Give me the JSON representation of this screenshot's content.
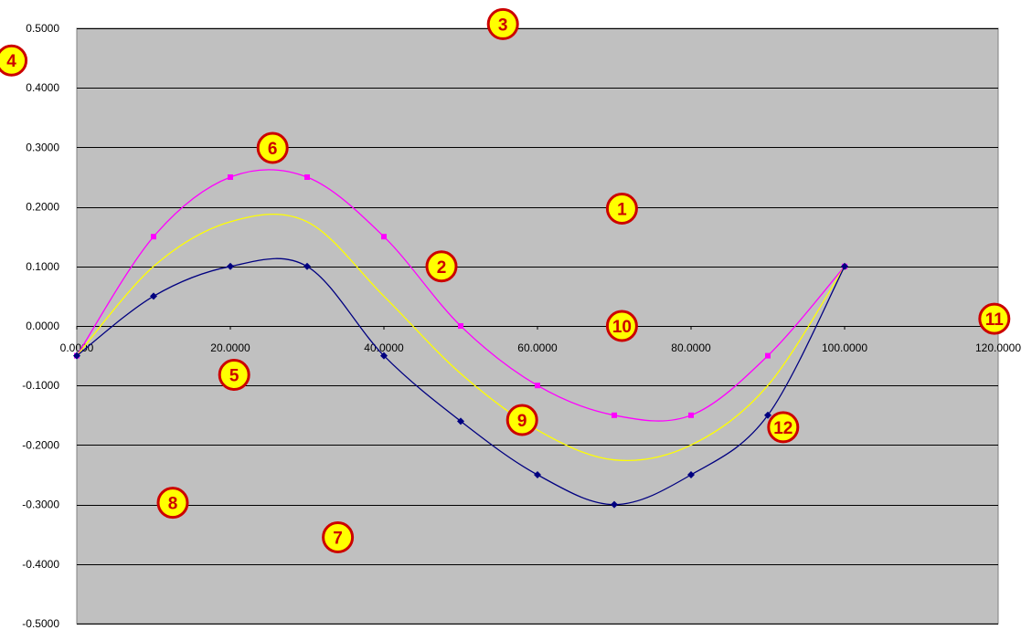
{
  "chart_data": {
    "type": "scatter",
    "title": "",
    "xlabel": "",
    "ylabel": "",
    "xlim": [
      0,
      120
    ],
    "ylim": [
      -0.5,
      0.5
    ],
    "x_ticks": [
      0,
      20,
      40,
      60,
      80,
      100,
      120
    ],
    "y_ticks": [
      0.5,
      0.4,
      0.3,
      0.2,
      0.1,
      0.0,
      -0.1,
      -0.2,
      -0.3,
      -0.4,
      -0.5
    ],
    "x_tick_labels": [
      "0.0000",
      "20.0000",
      "40.0000",
      "60.0000",
      "80.0000",
      "100.0000",
      "120.0000"
    ],
    "y_tick_labels": [
      "0.5000",
      "0.4000",
      "0.3000",
      "0.2000",
      "0.1000",
      "0.0000",
      "-0.1000",
      "-0.2000",
      "-0.3000",
      "-0.4000",
      "-0.5000"
    ],
    "grid": "horizontal",
    "legend": "none",
    "plot_background": "#c0c0c0",
    "series": [
      {
        "color": "#ff00ff",
        "marker": "square",
        "line": "smooth",
        "x": [
          0,
          10,
          20,
          30,
          40,
          50,
          60,
          70,
          80,
          90,
          100
        ],
        "y": [
          -0.05,
          0.15,
          0.25,
          0.25,
          0.15,
          0.0,
          -0.1,
          -0.15,
          -0.15,
          -0.05,
          0.1
        ]
      },
      {
        "color": "#ffff00",
        "marker": "none",
        "line": "smooth",
        "x": [
          0,
          10,
          20,
          30,
          40,
          50,
          60,
          70,
          80,
          90,
          100
        ],
        "y": [
          -0.05,
          0.1,
          0.175,
          0.175,
          0.05,
          -0.08,
          -0.175,
          -0.225,
          -0.2,
          -0.1,
          0.1
        ]
      },
      {
        "color": "#000080",
        "marker": "diamond",
        "line": "smooth",
        "x": [
          0,
          10,
          20,
          30,
          40,
          50,
          60,
          70,
          80,
          90,
          100
        ],
        "y": [
          -0.05,
          0.05,
          0.1,
          0.1,
          -0.05,
          -0.16,
          -0.25,
          -0.3,
          -0.25,
          -0.15,
          0.1
        ]
      }
    ]
  },
  "annotations": [
    {
      "label": "1",
      "x": 71,
      "y": 0.197
    },
    {
      "label": "2",
      "x": 47.5,
      "y": 0.1
    },
    {
      "label": "3",
      "x": 55.5,
      "y": 0.507
    },
    {
      "label": "4",
      "x": -8.5,
      "y": 0.446
    },
    {
      "label": "5",
      "x": 20.5,
      "y": -0.082
    },
    {
      "label": "6",
      "x": 25.5,
      "y": 0.299
    },
    {
      "label": "7",
      "x": 34,
      "y": -0.355
    },
    {
      "label": "8",
      "x": 12.5,
      "y": -0.297
    },
    {
      "label": "9",
      "x": 58,
      "y": -0.158
    },
    {
      "label": "10",
      "x": 71,
      "y": 0.0
    },
    {
      "label": "11",
      "x": 119.5,
      "y": 0.012
    },
    {
      "label": "12",
      "x": 92,
      "y": -0.17
    }
  ],
  "badge_colors": {
    "fill": "#ffff00",
    "stroke": "#cc0000",
    "text": "#cc0000"
  }
}
